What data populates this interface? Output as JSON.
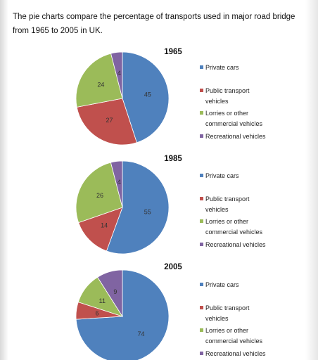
{
  "heading": "The pie charts compare the percentage of transports used in major road bridge from 1965 to 2005 in UK.",
  "categories": [
    "Private cars",
    "Public transport vehicles",
    "Lorries or other commercial vehicles",
    "Recreational vehicles"
  ],
  "legend_lines": [
    [
      "Private cars"
    ],
    [
      "Public transport",
      "vehicles"
    ],
    [
      "Lorries or other",
      "commercial vehicles"
    ],
    [
      "Recreational vehicles"
    ]
  ],
  "colors": [
    "#4f81bd",
    "#c0504d",
    "#9bbb59",
    "#8064a2"
  ],
  "chart_data": [
    {
      "type": "pie",
      "title": "1965",
      "categories": [
        "Private cars",
        "Public transport vehicles",
        "Lorries or other commercial vehicles",
        "Recreational vehicles"
      ],
      "values": [
        45,
        27,
        24,
        4
      ],
      "legend": "right"
    },
    {
      "type": "pie",
      "title": "1985",
      "categories": [
        "Private cars",
        "Public transport vehicles",
        "Lorries or other commercial vehicles",
        "Recreational vehicles"
      ],
      "values": [
        55,
        14,
        26,
        4
      ],
      "legend": "right"
    },
    {
      "type": "pie",
      "title": "2005",
      "categories": [
        "Private cars",
        "Public transport vehicles",
        "Lorries or other commercial vehicles",
        "Recreational vehicles"
      ],
      "values": [
        74,
        6,
        11,
        9
      ],
      "legend": "right"
    }
  ]
}
